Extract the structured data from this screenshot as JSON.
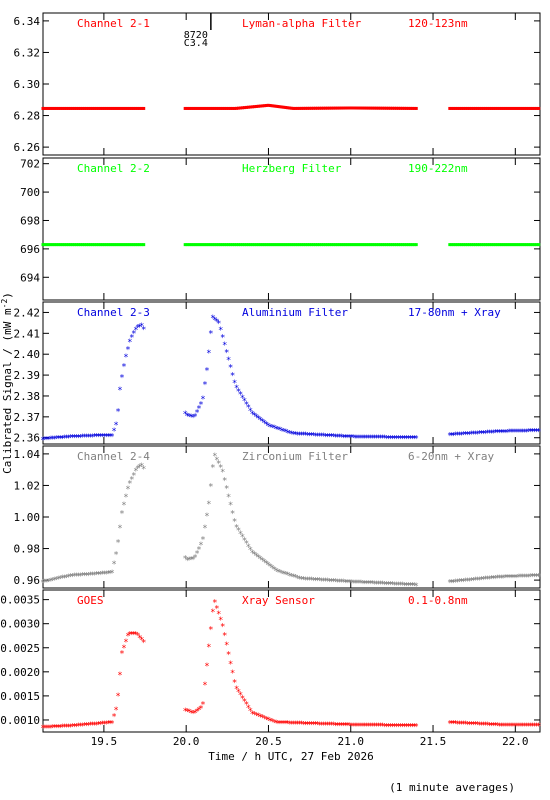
{
  "chart_data": {
    "type": "scatter",
    "xlabel": "Time / h UTC, 27 Feb 2026",
    "ylabel": "Calibrated Signal / (mW m",
    "ylabel_sup": "-2",
    "ylabel_close": ")",
    "note": "(1 minute averages)",
    "xlim": [
      19.13,
      22.15
    ],
    "x_ticks": [
      "19.5",
      "20.0",
      "20.5",
      "21.0",
      "21.5",
      "22.0"
    ],
    "x_tick_values": [
      19.5,
      20.0,
      20.5,
      21.0,
      21.5,
      22.0
    ],
    "flare_marker": {
      "x": 20.15,
      "labels": [
        "8720",
        "C3.4"
      ]
    },
    "gaps": [
      [
        19.75,
        19.99
      ],
      [
        21.4,
        21.6
      ]
    ],
    "panels": [
      {
        "name": "Channel 2-1",
        "filter": "Lyman-alpha Filter",
        "band": "120-123nm",
        "color": "#ff0000",
        "marker": "dot",
        "ylim": [
          6.255,
          6.345
        ],
        "y_ticks": [
          "6.34",
          "6.32",
          "6.30",
          "6.28",
          "6.26"
        ],
        "y_tick_values": [
          6.34,
          6.32,
          6.3,
          6.28,
          6.26
        ],
        "series": [
          {
            "x": 19.13,
            "y": 6.2845
          },
          {
            "x": 19.5,
            "y": 6.2845
          },
          {
            "x": 19.75,
            "y": 6.2845
          },
          {
            "x": 20.0,
            "y": 6.2845
          },
          {
            "x": 20.3,
            "y": 6.2845
          },
          {
            "x": 20.5,
            "y": 6.2865
          },
          {
            "x": 20.65,
            "y": 6.2845
          },
          {
            "x": 21.0,
            "y": 6.2848
          },
          {
            "x": 21.4,
            "y": 6.2845
          },
          {
            "x": 21.6,
            "y": 6.2845
          },
          {
            "x": 22.15,
            "y": 6.2845
          }
        ]
      },
      {
        "name": "Channel 2-2",
        "filter": "Herzberg Filter",
        "band": "190-222nm",
        "color": "#00ff00",
        "marker": "dot",
        "ylim": [
          692.4,
          702.4
        ],
        "y_ticks": [
          "702",
          "700",
          "698",
          "696",
          "694"
        ],
        "y_tick_values": [
          702,
          700,
          698,
          696,
          694
        ],
        "series": [
          {
            "x": 19.13,
            "y": 696.3
          },
          {
            "x": 19.75,
            "y": 696.3
          },
          {
            "x": 20.0,
            "y": 696.3
          },
          {
            "x": 21.0,
            "y": 696.3
          },
          {
            "x": 21.4,
            "y": 696.3
          },
          {
            "x": 21.6,
            "y": 696.3
          },
          {
            "x": 22.15,
            "y": 696.3
          }
        ]
      },
      {
        "name": "Channel 2-3",
        "filter": "Aluminium Filter",
        "band": "17-80nm + Xray",
        "color": "#0000dd",
        "marker": "star",
        "ylim": [
          2.357,
          2.425
        ],
        "y_ticks": [
          "2.42",
          "2.41",
          "2.40",
          "2.39",
          "2.38",
          "2.37",
          "2.36"
        ],
        "y_tick_values": [
          2.42,
          2.41,
          2.4,
          2.39,
          2.38,
          2.37,
          2.36
        ],
        "series": [
          {
            "x": 19.13,
            "y": 2.3595
          },
          {
            "x": 19.3,
            "y": 2.3605
          },
          {
            "x": 19.45,
            "y": 2.361
          },
          {
            "x": 19.55,
            "y": 2.361
          },
          {
            "x": 19.58,
            "y": 2.368
          },
          {
            "x": 19.6,
            "y": 2.385
          },
          {
            "x": 19.63,
            "y": 2.398
          },
          {
            "x": 19.66,
            "y": 2.407
          },
          {
            "x": 19.7,
            "y": 2.413
          },
          {
            "x": 19.73,
            "y": 2.414
          },
          {
            "x": 19.75,
            "y": 2.411
          },
          {
            "x": 20.0,
            "y": 2.371
          },
          {
            "x": 20.05,
            "y": 2.37
          },
          {
            "x": 20.1,
            "y": 2.378
          },
          {
            "x": 20.13,
            "y": 2.395
          },
          {
            "x": 20.16,
            "y": 2.418
          },
          {
            "x": 20.2,
            "y": 2.415
          },
          {
            "x": 20.25,
            "y": 2.4
          },
          {
            "x": 20.3,
            "y": 2.385
          },
          {
            "x": 20.4,
            "y": 2.372
          },
          {
            "x": 20.5,
            "y": 2.366
          },
          {
            "x": 20.65,
            "y": 2.362
          },
          {
            "x": 21.0,
            "y": 2.3605
          },
          {
            "x": 21.4,
            "y": 2.36
          },
          {
            "x": 21.6,
            "y": 2.3615
          },
          {
            "x": 21.9,
            "y": 2.363
          },
          {
            "x": 22.15,
            "y": 2.3635
          }
        ]
      },
      {
        "name": "Channel 2-4",
        "filter": "Zirconium Filter",
        "band": "6-20nm + Xray",
        "color": "#808080",
        "marker": "star",
        "ylim": [
          0.955,
          1.045
        ],
        "y_ticks": [
          "1.04",
          "1.02",
          "1.00",
          "0.98",
          "0.96"
        ],
        "y_tick_values": [
          1.04,
          1.02,
          1.0,
          0.98,
          0.96
        ],
        "series": [
          {
            "x": 19.13,
            "y": 0.959
          },
          {
            "x": 19.3,
            "y": 0.963
          },
          {
            "x": 19.45,
            "y": 0.964
          },
          {
            "x": 19.55,
            "y": 0.965
          },
          {
            "x": 19.58,
            "y": 0.98
          },
          {
            "x": 19.61,
            "y": 1.003
          },
          {
            "x": 19.65,
            "y": 1.02
          },
          {
            "x": 19.7,
            "y": 1.031
          },
          {
            "x": 19.73,
            "y": 1.033
          },
          {
            "x": 19.75,
            "y": 1.03
          },
          {
            "x": 20.0,
            "y": 0.973
          },
          {
            "x": 20.05,
            "y": 0.974
          },
          {
            "x": 20.1,
            "y": 0.985
          },
          {
            "x": 20.14,
            "y": 1.01
          },
          {
            "x": 20.17,
            "y": 1.04
          },
          {
            "x": 20.22,
            "y": 1.03
          },
          {
            "x": 20.3,
            "y": 0.995
          },
          {
            "x": 20.4,
            "y": 0.978
          },
          {
            "x": 20.55,
            "y": 0.966
          },
          {
            "x": 20.7,
            "y": 0.961
          },
          {
            "x": 21.0,
            "y": 0.959
          },
          {
            "x": 21.4,
            "y": 0.957
          },
          {
            "x": 21.6,
            "y": 0.959
          },
          {
            "x": 21.9,
            "y": 0.962
          },
          {
            "x": 22.15,
            "y": 0.963
          }
        ]
      },
      {
        "name": "GOES",
        "filter": "Xray Sensor",
        "band": "0.1-0.8nm",
        "color": "#ff0000",
        "marker": "star",
        "ylim": [
          0.00075,
          0.0037
        ],
        "y_ticks": [
          "0.0035",
          "0.0030",
          "0.0025",
          "0.0020",
          "0.0015",
          "0.0010"
        ],
        "y_tick_values": [
          0.0035,
          0.003,
          0.0025,
          0.002,
          0.0015,
          0.001
        ],
        "series": [
          {
            "x": 19.13,
            "y": 0.00085
          },
          {
            "x": 19.3,
            "y": 0.00088
          },
          {
            "x": 19.45,
            "y": 0.00092
          },
          {
            "x": 19.55,
            "y": 0.00095
          },
          {
            "x": 19.58,
            "y": 0.0013
          },
          {
            "x": 19.61,
            "y": 0.0024
          },
          {
            "x": 19.65,
            "y": 0.0028
          },
          {
            "x": 19.7,
            "y": 0.0028
          },
          {
            "x": 19.75,
            "y": 0.0026
          },
          {
            "x": 19.85,
            "y": 0.0018
          },
          {
            "x": 19.95,
            "y": 0.00125
          },
          {
            "x": 20.05,
            "y": 0.00115
          },
          {
            "x": 20.1,
            "y": 0.00128
          },
          {
            "x": 20.14,
            "y": 0.0026
          },
          {
            "x": 20.17,
            "y": 0.0035
          },
          {
            "x": 20.22,
            "y": 0.003
          },
          {
            "x": 20.3,
            "y": 0.0017
          },
          {
            "x": 20.4,
            "y": 0.00115
          },
          {
            "x": 20.55,
            "y": 0.00095
          },
          {
            "x": 21.0,
            "y": 0.0009
          },
          {
            "x": 21.4,
            "y": 0.00088
          },
          {
            "x": 21.6,
            "y": 0.00095
          },
          {
            "x": 21.9,
            "y": 0.0009
          },
          {
            "x": 22.15,
            "y": 0.0009
          }
        ]
      }
    ]
  }
}
